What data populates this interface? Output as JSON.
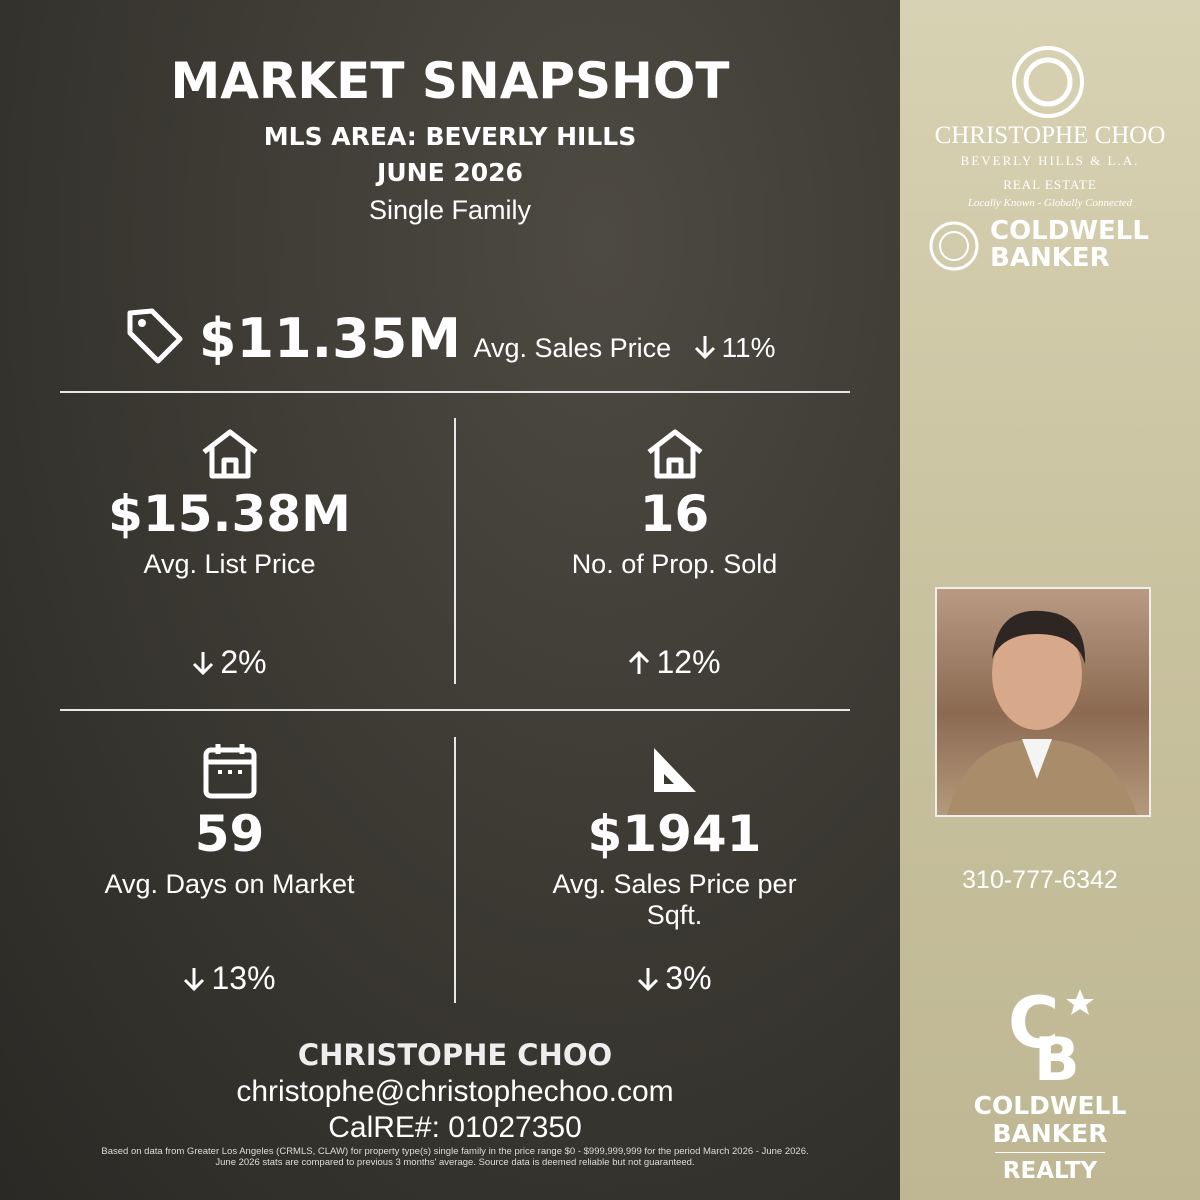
{
  "header": {
    "title": "MARKET SNAPSHOT",
    "area": "MLS AREA: BEVERLY HILLS",
    "period": "JUNE 2026",
    "property_type": "Single Family"
  },
  "headline": {
    "value": "$11.35M",
    "label": "Avg. Sales Price",
    "change": "11%",
    "trend": "down"
  },
  "stats": [
    {
      "value": "$15.38M",
      "label": "Avg. List Price",
      "change": "2%",
      "trend": "down"
    },
    {
      "value": "16",
      "label": "No. of Prop. Sold",
      "change": "12%",
      "trend": "up"
    },
    {
      "value": "59",
      "label": "Avg. Days on Market",
      "change": "13%",
      "trend": "down"
    },
    {
      "value": "$1941",
      "label": "Avg. Sales Price per Sqft.",
      "change": "3%",
      "trend": "down"
    }
  ],
  "contact": {
    "name": "CHRISTOPHE CHOO",
    "email": "christophe@christophechoo.com",
    "license": "CalRE#: 01027350"
  },
  "disclaimer": "Based on data from Greater Los Angeles (CRMLS, CLAW) for property type(s) single family in the price range $0 - $999,999,999 for the period March 2026 - June 2026. June 2026 stats are compared to previous 3 months' average. Source data is deemed reliable but not guaranteed.",
  "sidebar": {
    "brand": "CHRISTOPHE CHOO",
    "brand_sub": "BEVERLY HILLS & L.A.",
    "brand_sub2": "REAL ESTATE",
    "tagline": "Locally Known - Globally Connected",
    "partner": [
      "COLDWELL",
      "BANKER"
    ],
    "phone": "310-777-6342",
    "footer_logo": [
      "COLDWELL",
      "BANKER",
      "REALTY"
    ]
  }
}
